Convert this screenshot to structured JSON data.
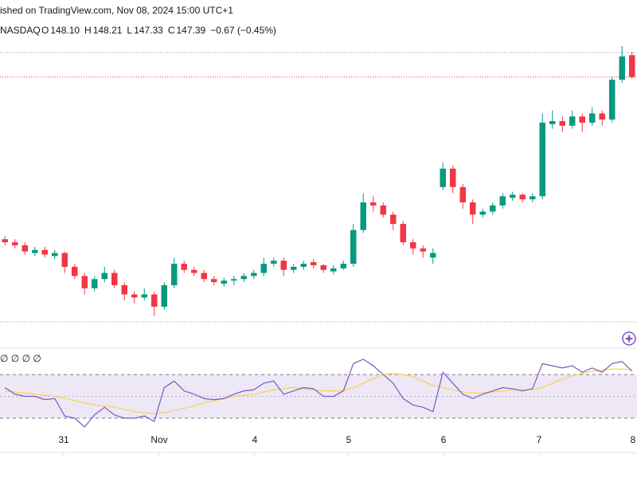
{
  "header": {
    "title": "ished on TradingView.com, Nov 08, 2024 15:00 UTC+1",
    "symbol": "NASDAQ",
    "ohlc_labels": [
      "O",
      "H",
      "L",
      "C"
    ],
    "ohlc_values": [
      "148.10",
      "148.21",
      "147.33",
      "147.39"
    ],
    "change": "−0.67 (−0.45%)"
  },
  "chart_data": [
    {
      "type": "candlestick",
      "up_color": "#089981",
      "down_color": "#f23645",
      "last_price_line": true,
      "xlim": [
        -0.5,
        63.5
      ],
      "ylim": [
        138.6,
        148.6
      ],
      "xticks": [
        {
          "value": 5.9,
          "label": "31"
        },
        {
          "value": 15.5,
          "label": "Nov"
        },
        {
          "value": 25.1,
          "label": "4"
        },
        {
          "value": 34.54,
          "label": "5"
        },
        {
          "value": 44.06,
          "label": "6"
        },
        {
          "value": 53.66,
          "label": "7"
        },
        {
          "value": 63.1,
          "label": "8"
        }
      ],
      "series": [
        {
          "values": [
            [
              142.1,
              142.2,
              141.9,
              142.0
            ],
            [
              142.0,
              142.1,
              141.8,
              141.9
            ],
            [
              141.9,
              142.0,
              141.6,
              141.7
            ],
            [
              141.65,
              141.85,
              141.55,
              141.75
            ],
            [
              141.75,
              141.85,
              141.5,
              141.6
            ],
            [
              141.55,
              141.75,
              141.45,
              141.65
            ],
            [
              141.65,
              141.7,
              141.0,
              141.2
            ],
            [
              141.2,
              141.3,
              140.8,
              140.9
            ],
            [
              140.9,
              141.0,
              140.3,
              140.5
            ],
            [
              140.5,
              140.9,
              140.4,
              140.8
            ],
            [
              140.8,
              141.2,
              140.7,
              141.0
            ],
            [
              141.0,
              141.1,
              140.5,
              140.6
            ],
            [
              140.6,
              140.7,
              140.1,
              140.3
            ],
            [
              140.3,
              140.4,
              140.0,
              140.2
            ],
            [
              140.2,
              140.5,
              140.1,
              140.3
            ],
            [
              140.3,
              140.4,
              139.6,
              139.9
            ],
            [
              139.9,
              140.7,
              139.8,
              140.6
            ],
            [
              140.6,
              141.5,
              140.5,
              141.3
            ],
            [
              141.3,
              141.4,
              141.0,
              141.1
            ],
            [
              141.1,
              141.2,
              140.9,
              141.0
            ],
            [
              141.0,
              141.1,
              140.7,
              140.8
            ],
            [
              140.8,
              140.9,
              140.6,
              140.7
            ],
            [
              140.65,
              140.85,
              140.55,
              140.75
            ],
            [
              140.75,
              140.9,
              140.6,
              140.8
            ],
            [
              140.8,
              141.0,
              140.7,
              140.9
            ],
            [
              140.9,
              141.1,
              140.8,
              141.0
            ],
            [
              141.0,
              141.5,
              140.9,
              141.3
            ],
            [
              141.3,
              141.5,
              141.2,
              141.4
            ],
            [
              141.4,
              141.5,
              140.9,
              141.1
            ],
            [
              141.1,
              141.3,
              141.0,
              141.2
            ],
            [
              141.2,
              141.4,
              141.1,
              141.3
            ],
            [
              141.35,
              141.45,
              141.15,
              141.25
            ],
            [
              141.25,
              141.3,
              141.0,
              141.1
            ],
            [
              141.05,
              141.25,
              140.95,
              141.15
            ],
            [
              141.15,
              141.4,
              141.1,
              141.3
            ],
            [
              141.3,
              142.6,
              141.2,
              142.4
            ],
            [
              142.4,
              143.6,
              142.3,
              143.3
            ],
            [
              143.3,
              143.5,
              143.0,
              143.2
            ],
            [
              143.2,
              143.3,
              142.8,
              142.9
            ],
            [
              142.9,
              143.0,
              142.4,
              142.6
            ],
            [
              142.6,
              142.7,
              141.9,
              142.0
            ],
            [
              142.0,
              142.1,
              141.6,
              141.8
            ],
            [
              141.8,
              141.9,
              141.5,
              141.7
            ],
            [
              141.5,
              141.8,
              141.3,
              141.65
            ],
            [
              143.8,
              144.6,
              143.7,
              144.4
            ],
            [
              144.4,
              144.5,
              143.6,
              143.8
            ],
            [
              143.8,
              143.9,
              143.1,
              143.3
            ],
            [
              143.3,
              143.4,
              142.6,
              142.9
            ],
            [
              142.9,
              143.1,
              142.8,
              143.0
            ],
            [
              143.0,
              143.3,
              142.9,
              143.2
            ],
            [
              143.2,
              143.6,
              143.1,
              143.5
            ],
            [
              143.45,
              143.65,
              143.35,
              143.55
            ],
            [
              143.55,
              143.6,
              143.3,
              143.4
            ],
            [
              143.4,
              143.6,
              143.3,
              143.5
            ],
            [
              143.5,
              146.2,
              143.4,
              145.9
            ],
            [
              145.85,
              146.3,
              145.7,
              145.95
            ],
            [
              145.95,
              146.1,
              145.6,
              145.8
            ],
            [
              145.8,
              146.3,
              145.7,
              146.1
            ],
            [
              146.1,
              146.2,
              145.6,
              145.9
            ],
            [
              145.9,
              146.4,
              145.8,
              146.2
            ],
            [
              146.2,
              146.3,
              145.8,
              146.0
            ],
            [
              146.0,
              147.4,
              145.9,
              147.3
            ],
            [
              147.3,
              148.4,
              147.2,
              148.06
            ],
            [
              148.1,
              148.21,
              147.33,
              147.39
            ]
          ]
        }
      ]
    },
    {
      "type": "line",
      "title": "∅ ∅ ∅ ∅",
      "xlim": [
        -0.5,
        63.5
      ],
      "ylim": [
        0,
        100
      ],
      "band": [
        30,
        70
      ],
      "midline": 50,
      "band_color": "#ede7f6",
      "series": [
        {
          "color": "#7e57c2",
          "values": [
            58,
            52,
            50,
            50,
            47,
            48,
            32,
            30,
            22,
            33,
            40,
            33,
            30,
            30,
            32,
            27,
            58,
            64,
            55,
            52,
            48,
            47,
            48,
            52,
            55,
            56,
            62,
            64,
            52,
            55,
            58,
            57,
            50,
            50,
            55,
            80,
            84,
            78,
            70,
            62,
            48,
            42,
            40,
            36,
            72,
            62,
            52,
            48,
            52,
            55,
            58,
            57,
            55,
            57,
            80,
            78,
            76,
            78,
            72,
            76,
            72,
            80,
            82,
            73
          ]
        },
        {
          "color": "#f7d54a",
          "values": [
            55,
            54,
            53,
            52,
            51,
            50,
            48,
            46,
            44,
            42,
            41,
            40,
            38,
            36,
            35,
            34,
            35,
            37,
            39,
            41,
            44,
            46,
            48,
            50,
            51,
            52,
            54,
            56,
            57,
            58,
            57,
            56,
            55,
            55,
            55,
            58,
            62,
            66,
            70,
            71,
            70,
            68,
            64,
            60,
            58,
            56,
            54,
            53,
            53,
            54,
            55,
            56,
            56,
            56,
            58,
            62,
            66,
            69,
            71,
            73,
            74,
            75,
            75,
            74
          ]
        }
      ]
    }
  ]
}
